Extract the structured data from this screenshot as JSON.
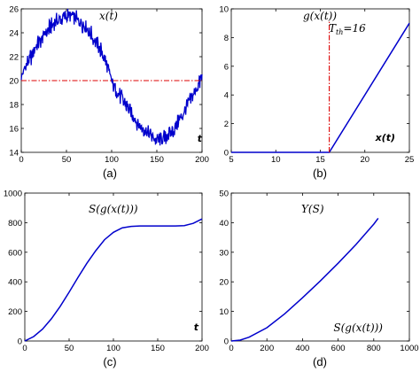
{
  "chart_data": [
    {
      "id": "a",
      "type": "line",
      "panel_label": "(a)",
      "title": "x(t)",
      "xlabel": "t",
      "ylabel": "",
      "xlim": [
        0,
        200
      ],
      "ylim": [
        14,
        26
      ],
      "xticks": [
        0,
        50,
        100,
        150,
        200
      ],
      "yticks": [
        14,
        16,
        18,
        20,
        22,
        24,
        26
      ],
      "series": [
        {
          "color": "#0000cc",
          "style": "solid-noisy",
          "x": [
            0,
            10,
            20,
            30,
            40,
            50,
            60,
            70,
            80,
            90,
            100,
            110,
            120,
            130,
            140,
            150,
            160,
            170,
            180,
            190,
            200
          ],
          "y": [
            20.4,
            21.9,
            23.3,
            24.3,
            25.0,
            25.4,
            25.2,
            24.6,
            23.6,
            22.3,
            20.0,
            18.6,
            17.4,
            16.4,
            15.6,
            15.0,
            15.3,
            16.1,
            17.4,
            18.7,
            20.3
          ]
        },
        {
          "color": "#dd0000",
          "style": "dash-dot",
          "x": [
            0,
            200
          ],
          "y": [
            20,
            20
          ]
        }
      ]
    },
    {
      "id": "b",
      "type": "line",
      "panel_label": "(b)",
      "title": "g(x(t))",
      "xlabel": "x(t)",
      "ylabel": "",
      "xlim": [
        5,
        25
      ],
      "ylim": [
        0,
        10
      ],
      "xticks": [
        5,
        10,
        15,
        20,
        25
      ],
      "yticks": [
        0,
        2,
        4,
        6,
        8,
        10
      ],
      "annotation": "T_th=16",
      "annotation_parts": {
        "base": "T",
        "sub": "th",
        "rest": "=16"
      },
      "series": [
        {
          "color": "#0000cc",
          "style": "solid",
          "x": [
            5,
            16,
            25
          ],
          "y": [
            0,
            0,
            9
          ]
        },
        {
          "color": "#dd0000",
          "style": "dash-dot",
          "x": [
            16,
            16
          ],
          "y": [
            0,
            9.1
          ]
        }
      ]
    },
    {
      "id": "c",
      "type": "line",
      "panel_label": "(c)",
      "title": "S(g(x(t)))",
      "xlabel": "t",
      "ylabel": "",
      "xlim": [
        0,
        200
      ],
      "ylim": [
        0,
        1000
      ],
      "xticks": [
        0,
        50,
        100,
        150,
        200
      ],
      "yticks": [
        0,
        200,
        400,
        600,
        800,
        1000
      ],
      "series": [
        {
          "color": "#0000cc",
          "style": "solid",
          "x": [
            0,
            10,
            20,
            30,
            40,
            50,
            60,
            70,
            80,
            90,
            100,
            110,
            120,
            130,
            140,
            150,
            160,
            170,
            180,
            190,
            200
          ],
          "y": [
            0,
            30,
            80,
            150,
            235,
            330,
            430,
            525,
            610,
            685,
            735,
            765,
            775,
            778,
            778,
            778,
            778,
            778,
            780,
            795,
            825
          ]
        }
      ]
    },
    {
      "id": "d",
      "type": "line",
      "panel_label": "(d)",
      "title": "Y(S)",
      "xlabel": "S(g(x(t)))",
      "ylabel": "",
      "xlim": [
        0,
        1000
      ],
      "ylim": [
        0,
        50
      ],
      "xticks": [
        0,
        200,
        400,
        600,
        800,
        1000
      ],
      "yticks": [
        0,
        10,
        20,
        30,
        40,
        50
      ],
      "series": [
        {
          "color": "#0000cc",
          "style": "solid",
          "x": [
            0,
            50,
            100,
            200,
            300,
            400,
            500,
            600,
            700,
            800,
            825
          ],
          "y": [
            0,
            0.3,
            1.3,
            4.5,
            9.2,
            14.6,
            20.3,
            26.3,
            32.6,
            39.5,
            41.5
          ]
        }
      ]
    }
  ]
}
